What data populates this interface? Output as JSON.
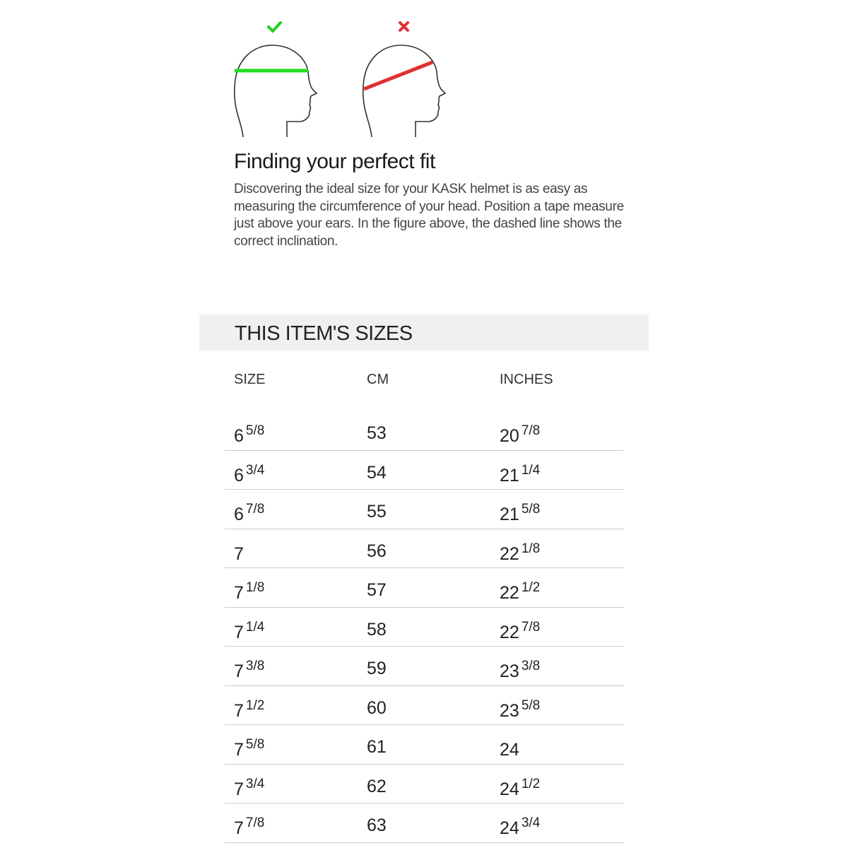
{
  "illustration": {
    "correct_mark": "checkmark-icon",
    "wrong_mark": "cross-icon",
    "colors": {
      "correct": "#22dd22",
      "wrong": "#e03030"
    }
  },
  "fit": {
    "title": "Finding your perfect fit",
    "description": "Discovering the ideal size for your KASK helmet is as easy as measuring the circumference of your head. Position a tape measure just above your ears. In the figure above, the dashed line shows the correct inclination."
  },
  "sizes": {
    "title": "THIS ITEM'S SIZES",
    "headers": [
      "SIZE",
      "CM",
      "INCHES"
    ],
    "rows": [
      {
        "size": "6",
        "size_frac": "5/8",
        "cm": "53",
        "in": "20",
        "in_frac": "7/8"
      },
      {
        "size": "6",
        "size_frac": "3/4",
        "cm": "54",
        "in": "21",
        "in_frac": "1/4"
      },
      {
        "size": "6",
        "size_frac": "7/8",
        "cm": "55",
        "in": "21",
        "in_frac": "5/8"
      },
      {
        "size": "7",
        "size_frac": "",
        "cm": "56",
        "in": "22",
        "in_frac": "1/8"
      },
      {
        "size": "7",
        "size_frac": "1/8",
        "cm": "57",
        "in": "22",
        "in_frac": "1/2"
      },
      {
        "size": "7",
        "size_frac": "1/4",
        "cm": "58",
        "in": "22",
        "in_frac": "7/8"
      },
      {
        "size": "7",
        "size_frac": "3/8",
        "cm": "59",
        "in": "23",
        "in_frac": "3/8"
      },
      {
        "size": "7",
        "size_frac": "1/2",
        "cm": "60",
        "in": "23",
        "in_frac": "5/8"
      },
      {
        "size": "7",
        "size_frac": "5/8",
        "cm": "61",
        "in": "24",
        "in_frac": ""
      },
      {
        "size": "7",
        "size_frac": "3/4",
        "cm": "62",
        "in": "24",
        "in_frac": "1/2"
      },
      {
        "size": "7",
        "size_frac": "7/8",
        "cm": "63",
        "in": "24",
        "in_frac": "3/4"
      }
    ]
  }
}
